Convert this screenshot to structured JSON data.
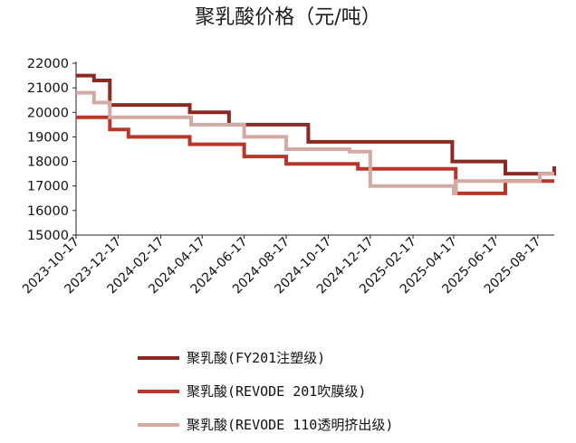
{
  "chart_data": {
    "type": "line",
    "step": true,
    "title": "聚乳酸价格（元/吨）",
    "xlabel": "",
    "ylabel": "",
    "ylim": [
      15000,
      22000
    ],
    "yticks": [
      15000,
      16000,
      17000,
      18000,
      19000,
      20000,
      21000,
      22000
    ],
    "xlim": [
      "2023-10-17",
      "2025-09-10"
    ],
    "xticks": [
      "2023-10-17",
      "2023-12-17",
      "2024-02-17",
      "2024-04-17",
      "2024-06-17",
      "2024-08-17",
      "2024-10-17",
      "2024-12-17",
      "2025-02-17",
      "2025-04-17",
      "2025-06-17",
      "2025-08-17"
    ],
    "grid": false,
    "legend": "bottom",
    "series": [
      {
        "name": "聚乳酸(FY201注塑级)",
        "color": "#8B2A22",
        "x": [
          "2023-10-17",
          "2023-11-12",
          "2023-12-05",
          "2024-03-30",
          "2024-05-26",
          "2024-09-18",
          "2025-04-15",
          "2025-07-01",
          "2025-09-10"
        ],
        "values": [
          21500,
          21300,
          20300,
          20000,
          19500,
          18800,
          18000,
          17500,
          17800
        ]
      },
      {
        "name": "聚乳酸(REVODE 201吹膜级)",
        "color": "#B8372A",
        "x": [
          "2023-10-17",
          "2023-12-05",
          "2024-01-01",
          "2024-03-30",
          "2024-06-17",
          "2024-08-17",
          "2024-11-29",
          "2025-04-20",
          "2025-07-01",
          "2025-09-10"
        ],
        "values": [
          19800,
          19300,
          19000,
          18700,
          18200,
          17900,
          17700,
          16700,
          17200,
          17200
        ]
      },
      {
        "name": "聚乳酸(REVODE 110透明挤出级)",
        "color": "#D3A9A4",
        "x": [
          "2023-10-17",
          "2023-11-12",
          "2023-12-05",
          "2024-04-01",
          "2024-06-17",
          "2024-08-17",
          "2024-11-17",
          "2024-12-17",
          "2025-04-17",
          "2025-04-20",
          "2025-07-01",
          "2025-08-20",
          "2025-09-10"
        ],
        "values": [
          20800,
          20400,
          19800,
          19500,
          19000,
          18500,
          18400,
          17000,
          16700,
          17200,
          17200,
          17500,
          17500
        ]
      }
    ]
  }
}
